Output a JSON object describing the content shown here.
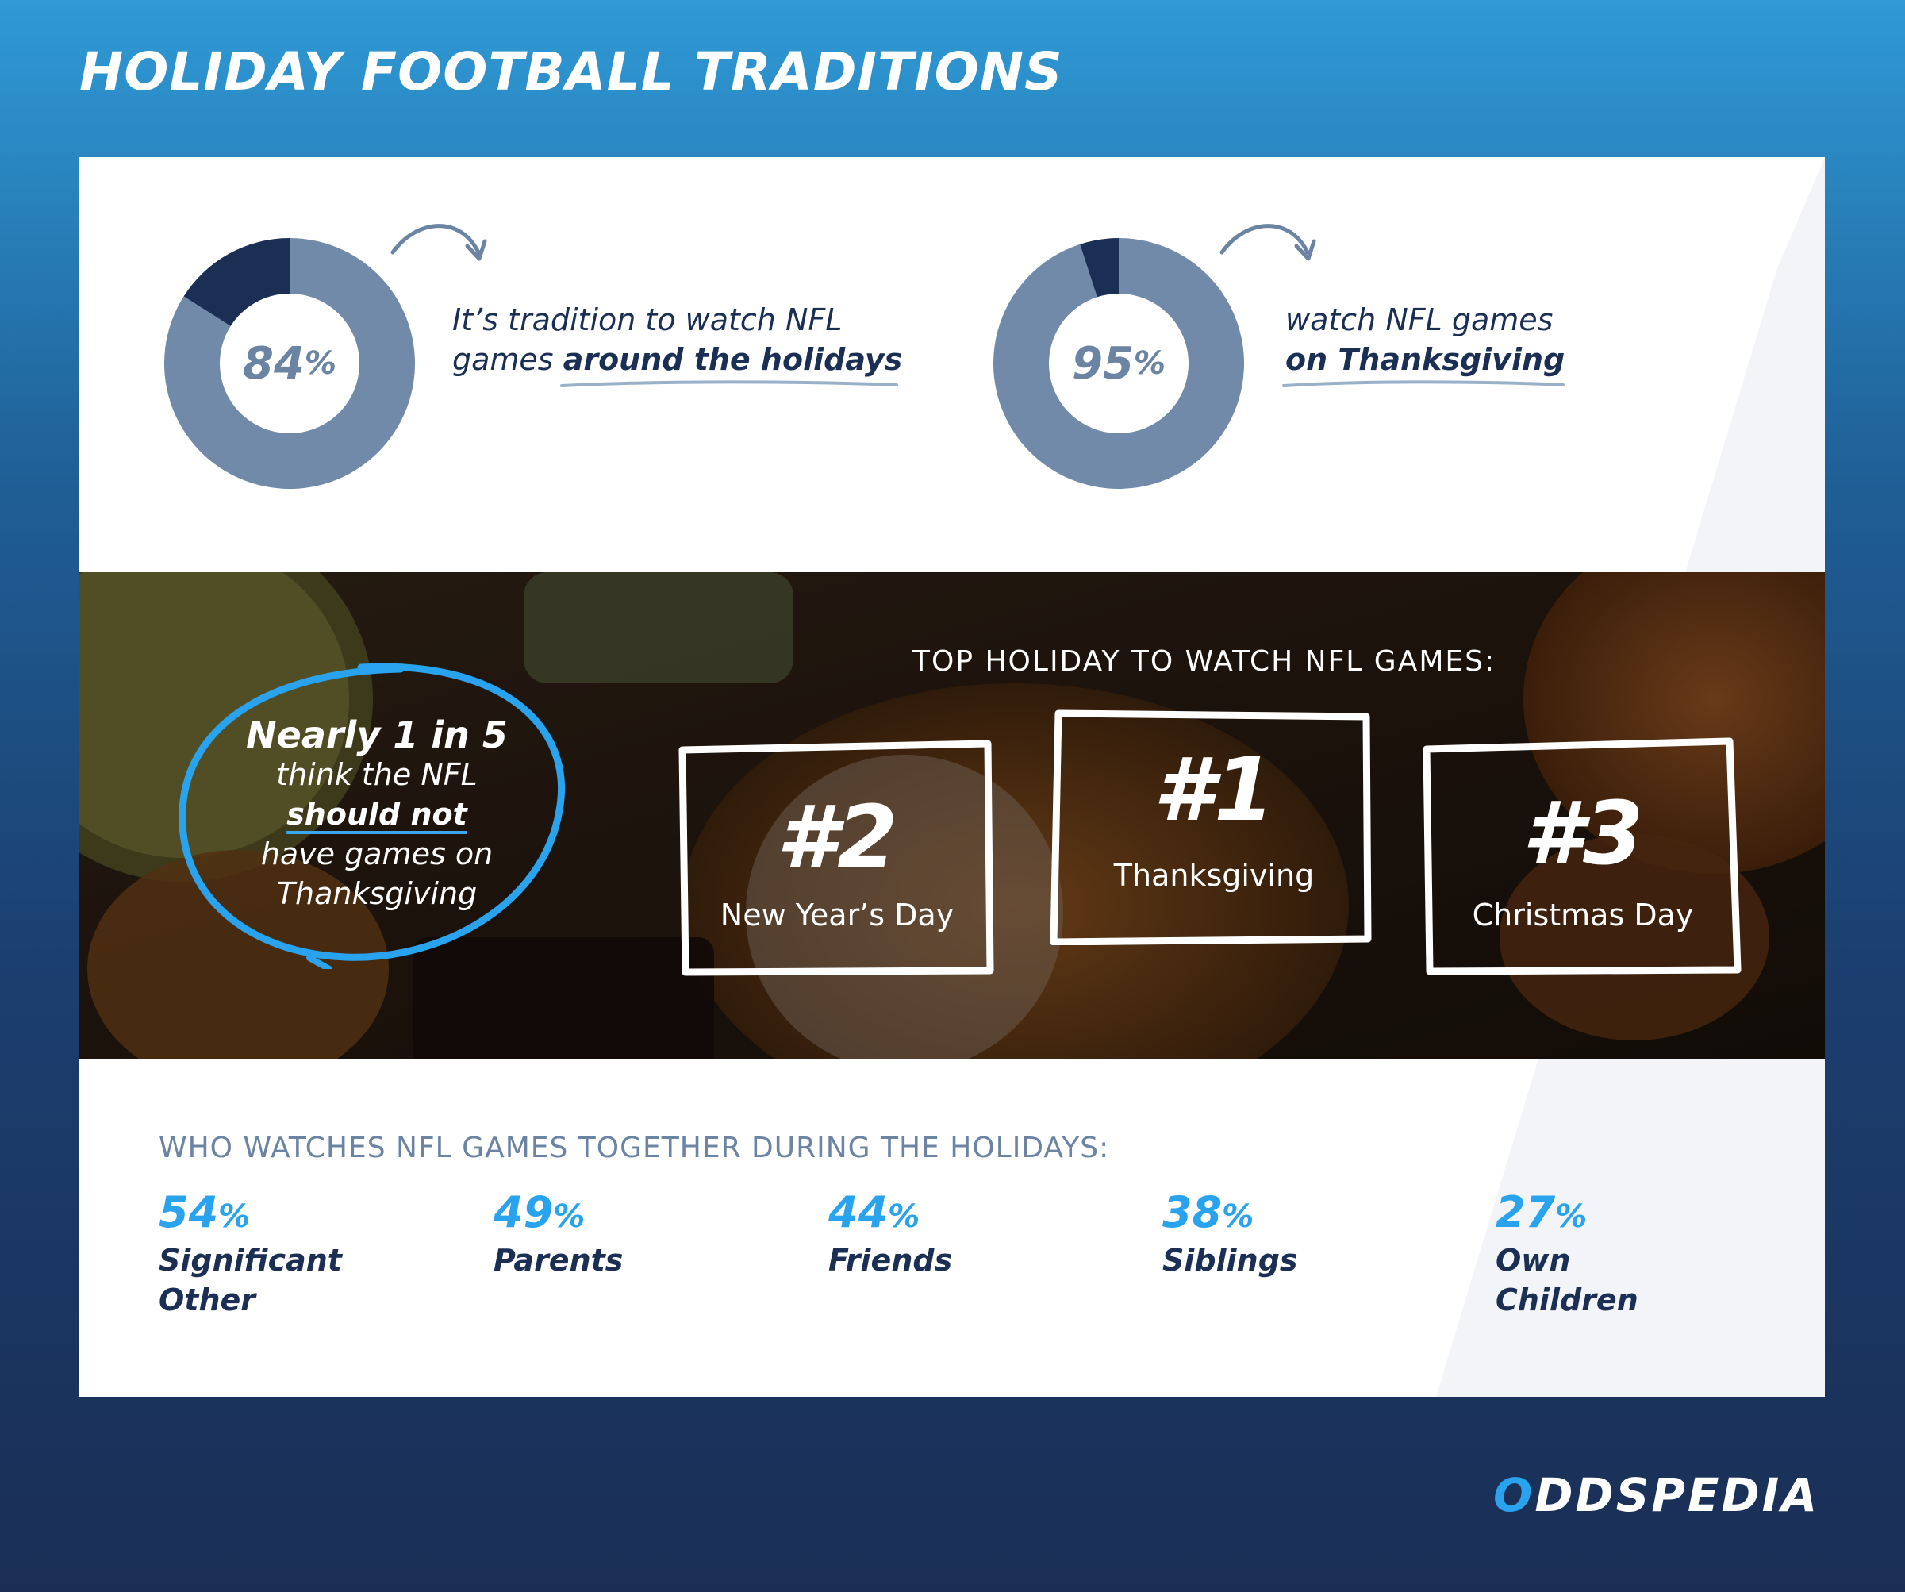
{
  "page_title": "HOLIDAY FOOTBALL TRADITIONS",
  "stats": [
    {
      "value": "84",
      "unit": "%",
      "fraction": 0.84,
      "text_pre": "It’s tradition to watch NFL games ",
      "text_em": "around the holidays",
      "line1": "It’s tradition to watch NFL",
      "line2_pre": "games "
    },
    {
      "value": "95",
      "unit": "%",
      "fraction": 0.95,
      "line1": "watch NFL games",
      "text_em": "on Thanksgiving"
    }
  ],
  "colors": {
    "donut_main": "#718aa9",
    "donut_rest": "#1b2f55",
    "accent": "#29a3ee",
    "navy": "#1b2f55",
    "slate": "#6b84a3"
  },
  "callout": {
    "lead": "Nearly 1 in 5",
    "line2": "think the NFL",
    "strong": "should not",
    "line4": "have games on",
    "line5": "Thanksgiving"
  },
  "top_holiday": {
    "heading": "TOP HOLIDAY TO WATCH NFL GAMES:",
    "ranks": [
      {
        "rank": "#2",
        "name": "New Year’s Day"
      },
      {
        "rank": "#1",
        "name": "Thanksgiving"
      },
      {
        "rank": "#3",
        "name": "Christmas Day"
      }
    ]
  },
  "who_watches": {
    "heading": "WHO WATCHES NFL GAMES TOGETHER DURING THE HOLIDAYS:",
    "items": [
      {
        "value": "54",
        "unit": "%",
        "line1": "Significant",
        "line2": "Other"
      },
      {
        "value": "49",
        "unit": "%",
        "line1": "Parents",
        "line2": ""
      },
      {
        "value": "44",
        "unit": "%",
        "line1": "Friends",
        "line2": ""
      },
      {
        "value": "38",
        "unit": "%",
        "line1": "Siblings",
        "line2": ""
      },
      {
        "value": "27",
        "unit": "%",
        "line1": "Own",
        "line2": "Children"
      }
    ]
  },
  "brand": {
    "first": "O",
    "rest": "DDSPEDIA"
  }
}
